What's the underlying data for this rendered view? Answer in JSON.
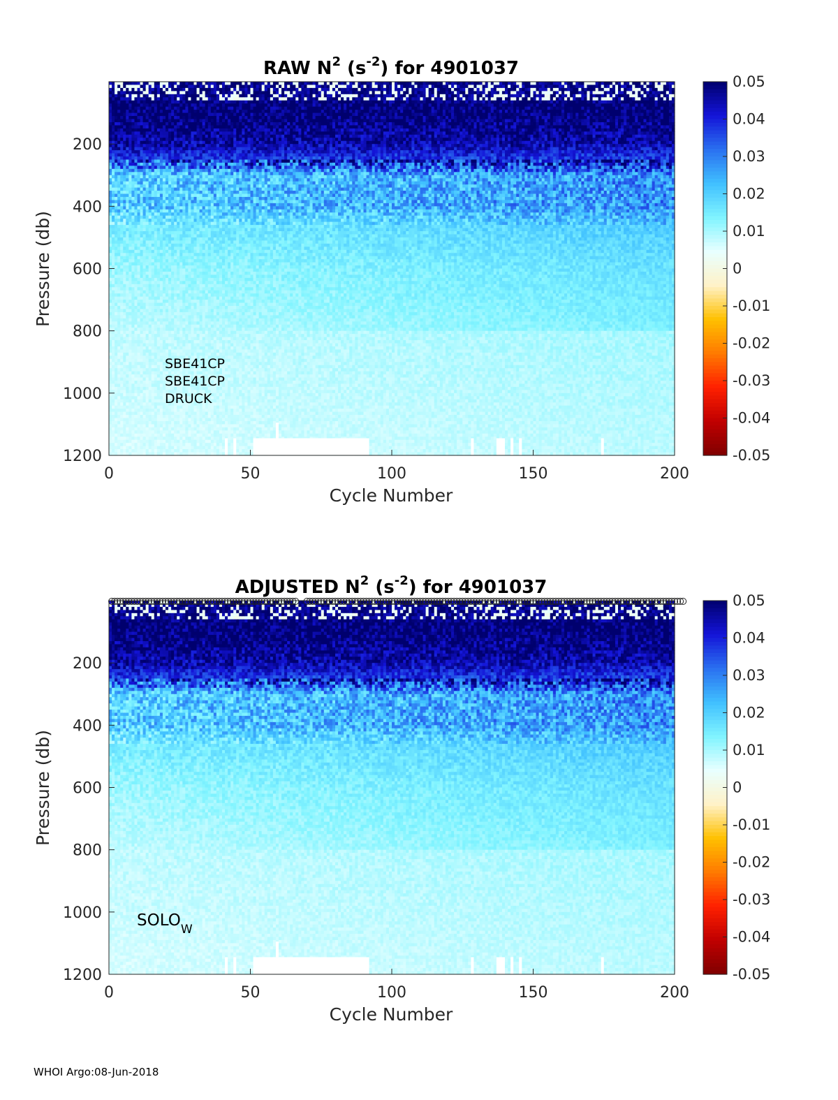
{
  "footer": "WHOI Argo:08-Jun-2018",
  "colors": {
    "colormap": [
      "#7f0000",
      "#c00000",
      "#ff2000",
      "#ff7a00",
      "#ffc000",
      "#fff2c8",
      "#e8ffff",
      "#80f4ff",
      "#40c0ff",
      "#2a70f0",
      "#1414d8",
      "#00006e"
    ],
    "axis": "#262626"
  },
  "chart_data": [
    {
      "type": "heatmap",
      "title_main": "RAW N",
      "title_sup1": "2",
      "title_mid": " (s",
      "title_sup2": "-2",
      "title_end": ") for 4901037",
      "xlabel": "Cycle Number",
      "ylabel": "Pressure (db)",
      "xlim": [
        0,
        200
      ],
      "ylim": [
        0,
        1200
      ],
      "y_reversed": true,
      "xticks": [
        "0",
        "50",
        "100",
        "150",
        "200"
      ],
      "yticks": [
        "200",
        "400",
        "600",
        "800",
        "1000",
        "1200"
      ],
      "colorbar": {
        "limits": [
          -0.05,
          0.05
        ],
        "ticks": [
          "0.05",
          "0.04",
          "0.03",
          "0.02",
          "0.01",
          "0",
          "-0.01",
          "-0.02",
          "-0.03",
          "-0.04",
          "-0.05"
        ]
      },
      "annotation": [
        "SBE41CP",
        "SBE41CP",
        "DRUCK"
      ],
      "annotation_position_data": [
        20,
        1040
      ],
      "depth_profile": [
        {
          "pressure": 10,
          "n2": 0.05
        },
        {
          "pressure": 100,
          "n2": 0.05
        },
        {
          "pressure": 200,
          "n2": 0.045
        },
        {
          "pressure": 260,
          "n2": 0.035
        },
        {
          "pressure": 300,
          "n2": 0.02
        },
        {
          "pressure": 400,
          "n2": 0.02
        },
        {
          "pressure": 450,
          "n2": 0.015
        },
        {
          "pressure": 600,
          "n2": 0.011
        },
        {
          "pressure": 800,
          "n2": 0.008
        },
        {
          "pressure": 1000,
          "n2": 0.007
        },
        {
          "pressure": 1200,
          "n2": 0.006
        }
      ]
    },
    {
      "type": "heatmap",
      "title_main": "ADJUSTED N",
      "title_sup1": "2",
      "title_mid": " (s",
      "title_sup2": "-2",
      "title_end": ") for 4901037",
      "xlabel": "Cycle Number",
      "ylabel": "Pressure (db)",
      "xlim": [
        0,
        200
      ],
      "ylim": [
        0,
        1200
      ],
      "y_reversed": true,
      "xticks": [
        "0",
        "50",
        "100",
        "150",
        "200"
      ],
      "yticks": [
        "200",
        "400",
        "600",
        "800",
        "1000",
        "1200"
      ],
      "colorbar": {
        "limits": [
          -0.05,
          0.05
        ],
        "ticks": [
          "0.05",
          "0.04",
          "0.03",
          "0.02",
          "0.01",
          "0",
          "-0.01",
          "-0.02",
          "-0.03",
          "-0.04",
          "-0.05"
        ]
      },
      "annotation_main": "SOLO",
      "annotation_sub": "W",
      "annotation_position_data": [
        10,
        1040
      ],
      "qc_marker_row": true,
      "depth_profile": [
        {
          "pressure": 10,
          "n2": 0.05
        },
        {
          "pressure": 100,
          "n2": 0.05
        },
        {
          "pressure": 200,
          "n2": 0.045
        },
        {
          "pressure": 260,
          "n2": 0.035
        },
        {
          "pressure": 300,
          "n2": 0.02
        },
        {
          "pressure": 400,
          "n2": 0.02
        },
        {
          "pressure": 450,
          "n2": 0.015
        },
        {
          "pressure": 600,
          "n2": 0.011
        },
        {
          "pressure": 800,
          "n2": 0.008
        },
        {
          "pressure": 1000,
          "n2": 0.007
        },
        {
          "pressure": 1200,
          "n2": 0.006
        }
      ]
    }
  ]
}
